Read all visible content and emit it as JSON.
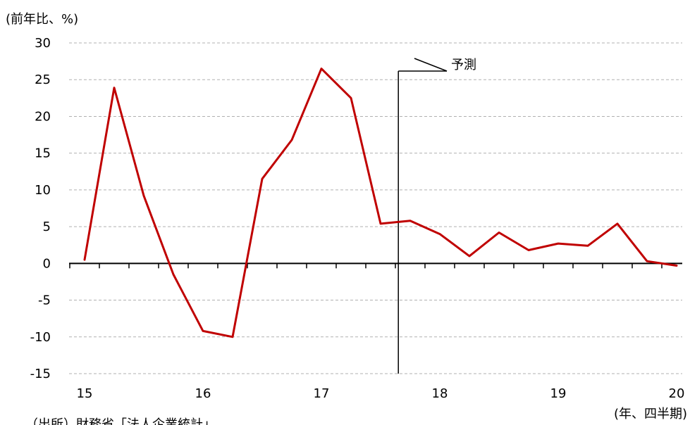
{
  "chart_data": {
    "type": "line",
    "ylabel": "(前年比、%)",
    "xlabel": "(年、四半期)",
    "source": "（出所）財務省「法人企業統計」",
    "forecast_label": "予測",
    "ylim": [
      -15,
      30
    ],
    "yticks": [
      30,
      25,
      20,
      15,
      10,
      5,
      0,
      -5,
      -10,
      -15
    ],
    "xticks": [
      "15",
      "16",
      "17",
      "18",
      "19",
      "20"
    ],
    "grid": true,
    "series": [
      {
        "values": [
          0.5,
          23.9,
          9.2,
          -1.5,
          -9.2,
          -10.0,
          11.5,
          16.8,
          26.5,
          22.5,
          5.4,
          5.8,
          4.0,
          1.0,
          4.2,
          1.8,
          2.7,
          2.4,
          5.4,
          0.3,
          -0.3
        ],
        "color": "#c00000"
      }
    ],
    "forecast_start_index": 10.6
  }
}
